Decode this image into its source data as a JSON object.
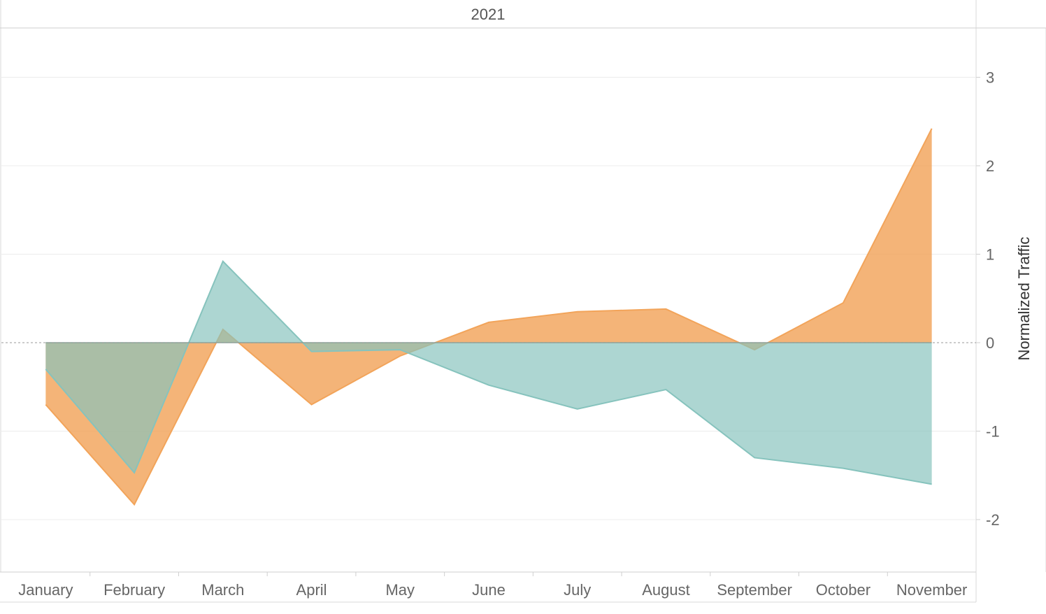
{
  "chart_data": {
    "type": "area",
    "header": "2021",
    "categories": [
      "January",
      "February",
      "March",
      "April",
      "May",
      "June",
      "July",
      "August",
      "September",
      "October",
      "November"
    ],
    "ylabel": "Normalized Traffic",
    "ylim": [
      -2.5,
      3.5
    ],
    "yticks": [
      3,
      2,
      1,
      0,
      -1,
      -2
    ],
    "grid": true,
    "series": [
      {
        "values": [
          -0.7,
          -1.83,
          0.15,
          -0.7,
          -0.15,
          0.23,
          0.35,
          0.38,
          -0.08,
          0.45,
          2.42
        ],
        "color": "#F2A45A"
      },
      {
        "values": [
          -0.3,
          -1.47,
          0.92,
          -0.1,
          -0.08,
          -0.48,
          -0.75,
          -0.53,
          -1.3,
          -1.42,
          -1.6
        ],
        "color": "#86C3BD"
      }
    ],
    "overlap_color": "#A9AE8A"
  }
}
